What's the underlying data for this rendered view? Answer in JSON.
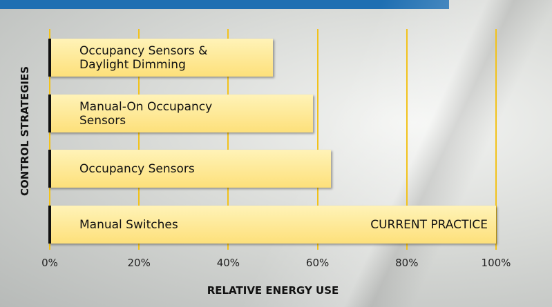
{
  "chart_data": {
    "type": "bar",
    "orientation": "horizontal",
    "categories": [
      "Occupancy Sensors & Daylight Dimming",
      "Manual-On Occupancy Sensors",
      "Occupancy Sensors",
      "Manual Switches"
    ],
    "values": [
      50,
      59,
      63,
      100
    ],
    "color": "#fde07a",
    "annotations": [
      {
        "text": "CURRENT PRACTICE",
        "category": 3
      }
    ],
    "xlabel": "RELATIVE ENERGY USE",
    "ylabel": "CONTROL STRATEGIES",
    "xlim": [
      0,
      100
    ],
    "xticks": [
      {
        "value": 0,
        "label": "0%"
      },
      {
        "value": 20,
        "label": "20%"
      },
      {
        "value": 40,
        "label": "40%"
      },
      {
        "value": 60,
        "label": "60%"
      },
      {
        "value": 80,
        "label": "80%"
      },
      {
        "value": 100,
        "label": "100%"
      }
    ],
    "grid": true,
    "grid_color": "#f2c21a"
  }
}
